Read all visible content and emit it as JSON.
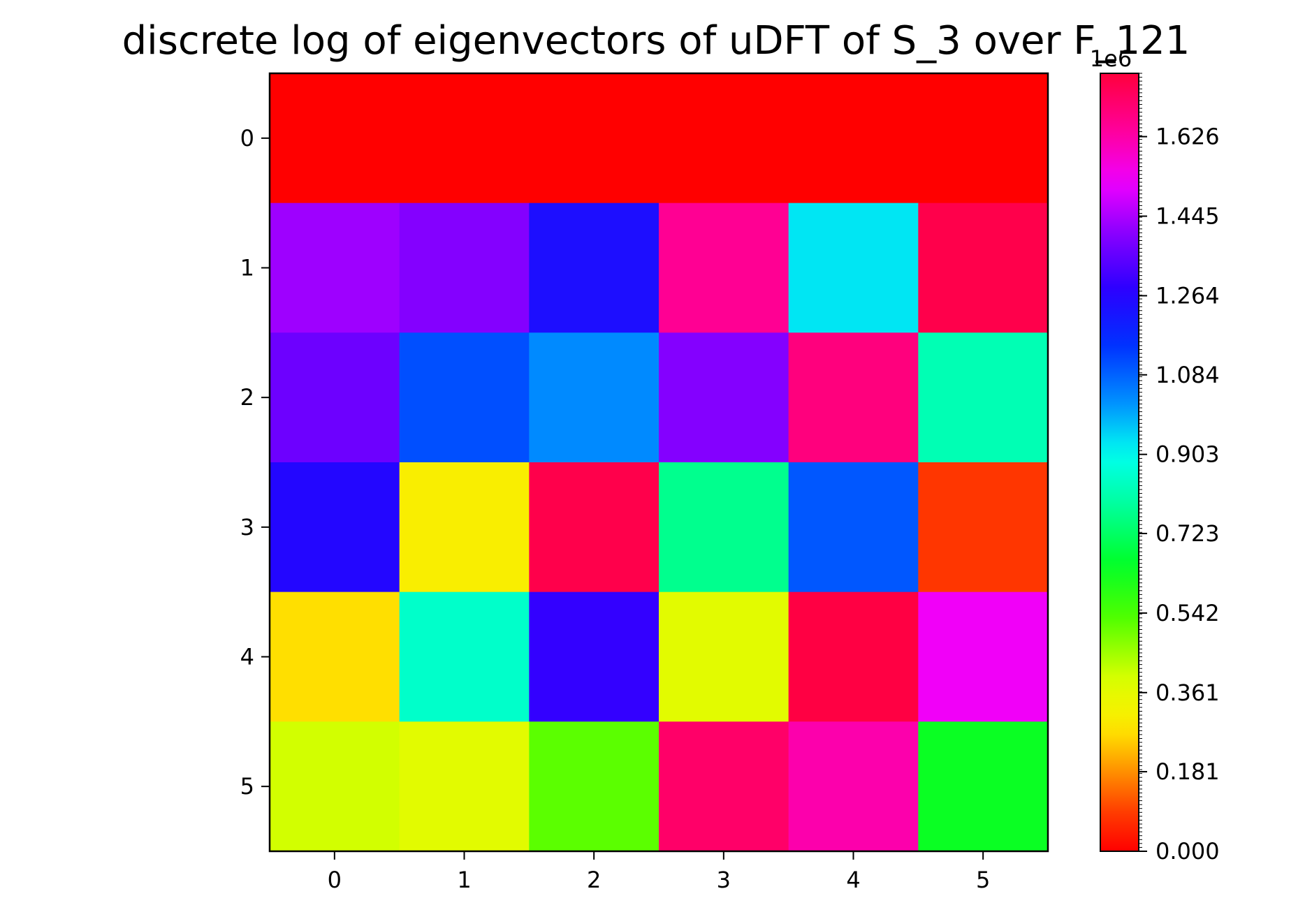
{
  "chart_data": {
    "type": "heatmap",
    "title": "discrete log of eigenvectors of uDFT of S_3 over F_121",
    "x_ticks": [
      "0",
      "1",
      "2",
      "3",
      "4",
      "5"
    ],
    "y_ticks": [
      "0",
      "1",
      "2",
      "3",
      "4",
      "5"
    ],
    "colormap": "gist_rainbow (reversed)",
    "vmin": 0,
    "vmax": 1770000,
    "colorbar": {
      "offset_label": "1e6",
      "ticks": [
        0.0,
        181000,
        361000,
        542000,
        723000,
        903000,
        1084000,
        1264000,
        1445000,
        1626000
      ],
      "tick_labels": [
        "0.000",
        "0.181",
        "0.361",
        "0.542",
        "0.723",
        "0.903",
        "1.084",
        "1.264",
        "1.445",
        "1.626"
      ]
    },
    "values": [
      [
        0,
        0,
        0,
        0,
        0,
        0
      ],
      [
        1430000,
        1400000,
        1240000,
        1650000,
        930000,
        1750000
      ],
      [
        1370000,
        1110000,
        1030000,
        1400000,
        1680000,
        820000
      ],
      [
        1260000,
        300000,
        1750000,
        770000,
        1100000,
        80000
      ],
      [
        270000,
        850000,
        1290000,
        370000,
        1760000,
        1530000
      ],
      [
        400000,
        370000,
        520000,
        1710000,
        1620000,
        640000
      ]
    ]
  }
}
